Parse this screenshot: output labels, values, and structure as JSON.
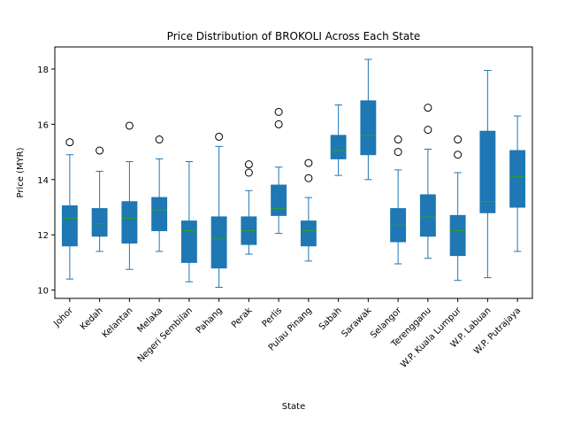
{
  "chart_data": {
    "type": "boxplot",
    "title": "Price Distribution of BROKOLI Across Each State",
    "xlabel": "State",
    "ylabel": "Price (MYR)",
    "ylim": [
      9.7,
      18.8
    ],
    "yticks": [
      10,
      12,
      14,
      16,
      18
    ],
    "grid": false,
    "box_color": "#1f77b4",
    "median_color": "#2ca02c",
    "categories": [
      "Johor",
      "Kedah",
      "Kelantan",
      "Melaka",
      "Negeri Sembilan",
      "Pahang",
      "Perak",
      "Perlis",
      "Pulau Pinang",
      "Sabah",
      "Sarawak",
      "Selangor",
      "Terengganu",
      "W.P. Kuala Lumpur",
      "W.P. Labuan",
      "W.P. Putrajaya"
    ],
    "boxes": [
      {
        "whisker_low": 10.4,
        "q1": 11.6,
        "median": 12.6,
        "q3": 13.05,
        "whisker_high": 14.9,
        "outliers": [
          15.35
        ]
      },
      {
        "whisker_low": 11.4,
        "q1": 11.95,
        "median": 12.4,
        "q3": 12.95,
        "whisker_high": 14.3,
        "outliers": [
          15.05
        ]
      },
      {
        "whisker_low": 10.75,
        "q1": 11.7,
        "median": 12.6,
        "q3": 13.2,
        "whisker_high": 14.65,
        "outliers": [
          15.95
        ]
      },
      {
        "whisker_low": 11.4,
        "q1": 12.15,
        "median": 12.9,
        "q3": 13.35,
        "whisker_high": 14.75,
        "outliers": [
          15.45
        ]
      },
      {
        "whisker_low": 10.3,
        "q1": 11.0,
        "median": 12.15,
        "q3": 12.5,
        "whisker_high": 14.65,
        "outliers": []
      },
      {
        "whisker_low": 10.1,
        "q1": 10.8,
        "median": 11.85,
        "q3": 12.65,
        "whisker_high": 15.2,
        "outliers": [
          15.55
        ]
      },
      {
        "whisker_low": 11.3,
        "q1": 11.65,
        "median": 12.15,
        "q3": 12.65,
        "whisker_high": 13.6,
        "outliers": [
          14.25,
          14.55
        ]
      },
      {
        "whisker_low": 12.05,
        "q1": 12.7,
        "median": 12.95,
        "q3": 13.8,
        "whisker_high": 14.45,
        "outliers": [
          16.0,
          16.45
        ]
      },
      {
        "whisker_low": 11.05,
        "q1": 11.6,
        "median": 12.15,
        "q3": 12.5,
        "whisker_high": 13.35,
        "outliers": [
          14.05,
          14.6
        ]
      },
      {
        "whisker_low": 14.15,
        "q1": 14.75,
        "median": 15.05,
        "q3": 15.6,
        "whisker_high": 16.7,
        "outliers": []
      },
      {
        "whisker_low": 14.0,
        "q1": 14.9,
        "median": 15.6,
        "q3": 16.85,
        "whisker_high": 18.35,
        "outliers": []
      },
      {
        "whisker_low": 10.95,
        "q1": 11.75,
        "median": 12.35,
        "q3": 12.95,
        "whisker_high": 14.35,
        "outliers": [
          15.0,
          15.45
        ]
      },
      {
        "whisker_low": 11.15,
        "q1": 11.95,
        "median": 12.65,
        "q3": 13.45,
        "whisker_high": 15.1,
        "outliers": [
          15.8,
          16.6
        ]
      },
      {
        "whisker_low": 10.35,
        "q1": 11.25,
        "median": 12.15,
        "q3": 12.7,
        "whisker_high": 14.25,
        "outliers": [
          14.9,
          15.45
        ]
      },
      {
        "whisker_low": 10.45,
        "q1": 12.8,
        "median": 13.2,
        "q3": 15.75,
        "whisker_high": 17.95,
        "outliers": []
      },
      {
        "whisker_low": 11.4,
        "q1": 13.0,
        "median": 14.1,
        "q3": 15.05,
        "whisker_high": 16.3,
        "outliers": []
      }
    ]
  }
}
